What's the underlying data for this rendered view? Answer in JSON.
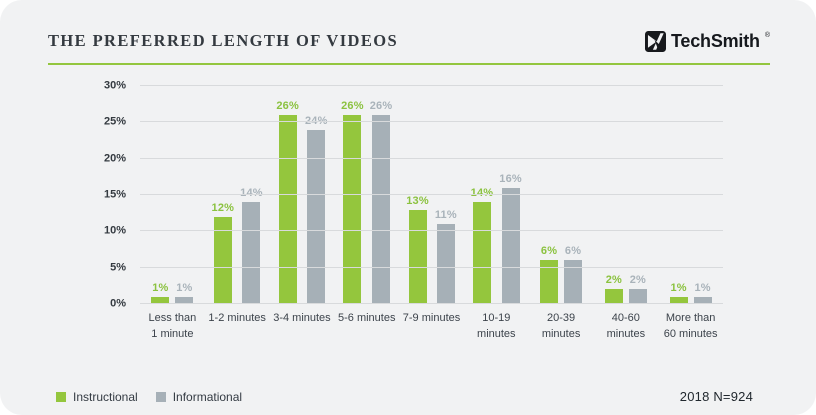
{
  "header": {
    "title": "THE PREFERRED LENGTH OF VIDEOS",
    "brand": "TechSmith",
    "registered_mark": "®"
  },
  "chart_data": {
    "type": "bar",
    "title": "THE PREFERRED LENGTH OF VIDEOS",
    "categories": [
      "Less than\n1 minute",
      "1-2 minutes",
      "3-4 minutes",
      "5-6 minutes",
      "7-9 minutes",
      "10-19\nminutes",
      "20-39\nminutes",
      "40-60\nminutes",
      "More than\n60 minutes"
    ],
    "series": [
      {
        "name": "Instructional",
        "color": "#94c63d",
        "label_color": "#8bc23f",
        "values": [
          1,
          12,
          26,
          26,
          13,
          14,
          6,
          2,
          1
        ]
      },
      {
        "name": "Informational",
        "color": "#a6b0b7",
        "label_color": "#a9b3ba",
        "values": [
          1,
          14,
          24,
          26,
          11,
          16,
          6,
          2,
          1
        ]
      }
    ],
    "value_suffix": "%",
    "ylim": [
      0,
      30
    ],
    "yticks": [
      "0%",
      "5%",
      "10%",
      "15%",
      "20%",
      "25%",
      "30%"
    ],
    "grid": true,
    "legend_position": "bottom-left"
  },
  "footnote": "2018 N=924",
  "colors": {
    "card_bg": "#f1f2f3",
    "accent_green": "#93c63e",
    "bar_gray": "#a6b0b7",
    "grid_line": "#d8dadc",
    "text_dark": "#343a40"
  }
}
